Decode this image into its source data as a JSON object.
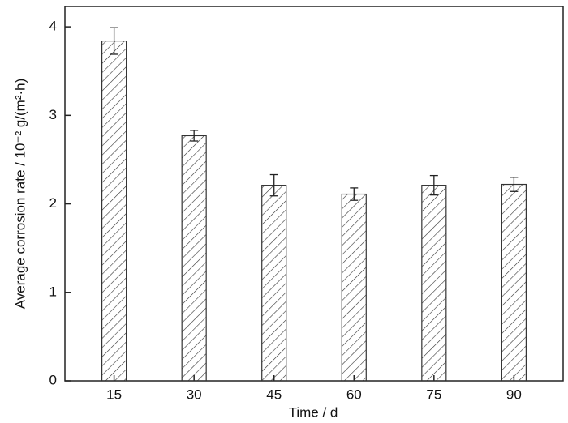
{
  "chart_data": {
    "type": "bar",
    "categories": [
      "15",
      "30",
      "45",
      "60",
      "75",
      "90"
    ],
    "values": [
      3.84,
      2.77,
      2.21,
      2.11,
      2.21,
      2.22
    ],
    "errors": [
      0.15,
      0.06,
      0.12,
      0.07,
      0.11,
      0.08
    ],
    "color": "#333333",
    "xlabel": "Time / d",
    "ylabel": "Average corrosion rate / 10⁻² g/(m²·h)",
    "ylim": [
      0,
      4.23
    ],
    "yticks": [
      0,
      1,
      2,
      3,
      4
    ]
  }
}
